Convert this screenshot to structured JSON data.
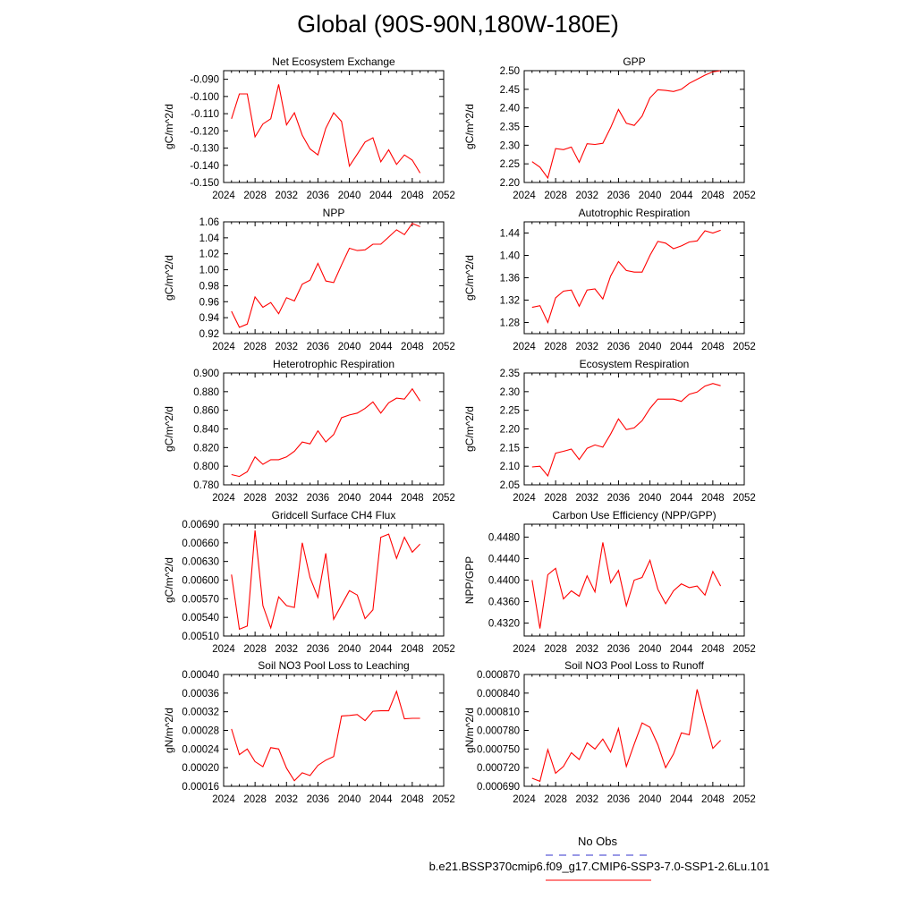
{
  "page": {
    "title": "Global (90S-90N,180W-180E)",
    "legend": {
      "obs_label": "No Obs",
      "model_label": "b.e21.BSSP370cmip6.f09_g17.CMIP6-SSP3-7.0-SSP1-2.6Lu.101",
      "obs_color": "#3333cc",
      "model_color": "#ff0000"
    }
  },
  "chart_data": [
    {
      "type": "line",
      "title": "Net Ecosystem Exchange",
      "ylabel": "gC/m^2/d",
      "xlim": [
        2024,
        2052
      ],
      "ylim": [
        -0.15,
        -0.085
      ],
      "xticks": [
        "2024",
        "2028",
        "2032",
        "2036",
        "2040",
        "2044",
        "2048",
        "2052"
      ],
      "yticks": [
        "-0.090",
        "-0.100",
        "-0.110",
        "-0.120",
        "-0.130",
        "-0.140",
        "-0.150"
      ],
      "series": [
        {
          "color": "#ff0000",
          "x": [
            2025,
            2026,
            2027,
            2028,
            2029,
            2030,
            2031,
            2032,
            2033,
            2034,
            2035,
            2036,
            2037,
            2038,
            2039,
            2040,
            2041,
            2042,
            2043,
            2044,
            2045,
            2046,
            2047,
            2048,
            2049
          ],
          "y": [
            -0.113,
            -0.0985,
            -0.0985,
            -0.1235,
            -0.116,
            -0.113,
            -0.093,
            -0.1165,
            -0.1095,
            -0.1225,
            -0.1305,
            -0.134,
            -0.1185,
            -0.1095,
            -0.1145,
            -0.1405,
            -0.1335,
            -0.1265,
            -0.124,
            -0.138,
            -0.131,
            -0.1395,
            -0.134,
            -0.137,
            -0.1445
          ]
        }
      ]
    },
    {
      "type": "line",
      "title": "GPP",
      "ylabel": "gC/m^2/d",
      "xlim": [
        2024,
        2052
      ],
      "ylim": [
        2.2,
        2.5
      ],
      "xticks": [
        "2024",
        "2028",
        "2032",
        "2036",
        "2040",
        "2044",
        "2048",
        "2052"
      ],
      "yticks": [
        "2.50",
        "2.45",
        "2.40",
        "2.35",
        "2.30",
        "2.25",
        "2.20"
      ],
      "series": [
        {
          "color": "#ff0000",
          "x": [
            2025,
            2026,
            2027,
            2028,
            2029,
            2030,
            2031,
            2032,
            2033,
            2034,
            2035,
            2036,
            2037,
            2038,
            2039,
            2040,
            2041,
            2042,
            2043,
            2044,
            2045,
            2046,
            2047,
            2048,
            2049
          ],
          "y": [
            2.256,
            2.241,
            2.212,
            2.291,
            2.288,
            2.295,
            2.254,
            2.304,
            2.302,
            2.305,
            2.347,
            2.396,
            2.359,
            2.353,
            2.378,
            2.427,
            2.449,
            2.447,
            2.444,
            2.45,
            2.466,
            2.477,
            2.488,
            2.497,
            2.5
          ]
        }
      ]
    },
    {
      "type": "line",
      "title": "NPP",
      "ylabel": "gC/m^2/d",
      "xlim": [
        2024,
        2052
      ],
      "ylim": [
        0.92,
        1.06
      ],
      "xticks": [
        "2024",
        "2028",
        "2032",
        "2036",
        "2040",
        "2044",
        "2048",
        "2052"
      ],
      "yticks": [
        "1.06",
        "1.04",
        "1.02",
        "1.00",
        "0.98",
        "0.96",
        "0.94",
        "0.92"
      ],
      "series": [
        {
          "color": "#ff0000",
          "x": [
            2025,
            2026,
            2027,
            2028,
            2029,
            2030,
            2031,
            2032,
            2033,
            2034,
            2035,
            2036,
            2037,
            2038,
            2039,
            2040,
            2041,
            2042,
            2043,
            2044,
            2045,
            2046,
            2047,
            2048,
            2049
          ],
          "y": [
            0.948,
            0.928,
            0.932,
            0.966,
            0.953,
            0.959,
            0.945,
            0.965,
            0.961,
            0.982,
            0.987,
            1.008,
            0.986,
            0.984,
            1.006,
            1.027,
            1.024,
            1.025,
            1.032,
            1.032,
            1.041,
            1.05,
            1.044,
            1.058,
            1.054
          ]
        }
      ]
    },
    {
      "type": "line",
      "title": "Autotrophic Respiration",
      "ylabel": "gC/m^2/d",
      "xlim": [
        2024,
        2052
      ],
      "ylim": [
        1.26,
        1.46
      ],
      "xticks": [
        "2024",
        "2028",
        "2032",
        "2036",
        "2040",
        "2044",
        "2048",
        "2052"
      ],
      "yticks": [
        "1.44",
        "1.40",
        "1.36",
        "1.32",
        "1.28"
      ],
      "series": [
        {
          "color": "#ff0000",
          "x": [
            2025,
            2026,
            2027,
            2028,
            2029,
            2030,
            2031,
            2032,
            2033,
            2034,
            2035,
            2036,
            2037,
            2038,
            2039,
            2040,
            2041,
            2042,
            2043,
            2044,
            2045,
            2046,
            2047,
            2048,
            2049
          ],
          "y": [
            1.307,
            1.31,
            1.28,
            1.324,
            1.336,
            1.338,
            1.309,
            1.338,
            1.34,
            1.322,
            1.363,
            1.389,
            1.373,
            1.37,
            1.37,
            1.4,
            1.425,
            1.422,
            1.412,
            1.417,
            1.424,
            1.426,
            1.444,
            1.44,
            1.445
          ]
        }
      ]
    },
    {
      "type": "line",
      "title": "Heterotrophic Respiration",
      "ylabel": "gC/m^2/d",
      "xlim": [
        2024,
        2052
      ],
      "ylim": [
        0.78,
        0.9
      ],
      "xticks": [
        "2024",
        "2028",
        "2032",
        "2036",
        "2040",
        "2044",
        "2048",
        "2052"
      ],
      "yticks": [
        "0.900",
        "0.880",
        "0.860",
        "0.840",
        "0.820",
        "0.800",
        "0.780"
      ],
      "series": [
        {
          "color": "#ff0000",
          "x": [
            2025,
            2026,
            2027,
            2028,
            2029,
            2030,
            2031,
            2032,
            2033,
            2034,
            2035,
            2036,
            2037,
            2038,
            2039,
            2040,
            2041,
            2042,
            2043,
            2044,
            2045,
            2046,
            2047,
            2048,
            2049
          ],
          "y": [
            0.791,
            0.789,
            0.794,
            0.81,
            0.802,
            0.807,
            0.807,
            0.81,
            0.816,
            0.826,
            0.824,
            0.838,
            0.826,
            0.834,
            0.852,
            0.855,
            0.857,
            0.862,
            0.869,
            0.857,
            0.868,
            0.873,
            0.872,
            0.883,
            0.87
          ]
        }
      ]
    },
    {
      "type": "line",
      "title": "Ecosystem Respiration",
      "ylabel": "gC/m^2/d",
      "xlim": [
        2024,
        2052
      ],
      "ylim": [
        2.05,
        2.35
      ],
      "xticks": [
        "2024",
        "2028",
        "2032",
        "2036",
        "2040",
        "2044",
        "2048",
        "2052"
      ],
      "yticks": [
        "2.35",
        "2.30",
        "2.25",
        "2.20",
        "2.15",
        "2.10",
        "2.05"
      ],
      "series": [
        {
          "color": "#ff0000",
          "x": [
            2025,
            2026,
            2027,
            2028,
            2029,
            2030,
            2031,
            2032,
            2033,
            2034,
            2035,
            2036,
            2037,
            2038,
            2039,
            2040,
            2041,
            2042,
            2043,
            2044,
            2045,
            2046,
            2047,
            2048,
            2049
          ],
          "y": [
            2.098,
            2.1,
            2.074,
            2.135,
            2.14,
            2.146,
            2.118,
            2.148,
            2.157,
            2.151,
            2.186,
            2.227,
            2.198,
            2.203,
            2.222,
            2.255,
            2.28,
            2.28,
            2.28,
            2.274,
            2.293,
            2.299,
            2.315,
            2.322,
            2.316
          ]
        }
      ]
    },
    {
      "type": "line",
      "title": "Gridcell Surface CH4 Flux",
      "ylabel": "gC/m^2/d",
      "xlim": [
        2024,
        2052
      ],
      "ylim": [
        0.0051,
        0.0069
      ],
      "xticks": [
        "2024",
        "2028",
        "2032",
        "2036",
        "2040",
        "2044",
        "2048",
        "2052"
      ],
      "yticks": [
        "0.00690",
        "0.00660",
        "0.00630",
        "0.00600",
        "0.00570",
        "0.00540",
        "0.00510"
      ],
      "series": [
        {
          "color": "#ff0000",
          "x": [
            2025,
            2026,
            2027,
            2028,
            2029,
            2030,
            2031,
            2032,
            2033,
            2034,
            2035,
            2036,
            2037,
            2038,
            2039,
            2040,
            2041,
            2042,
            2043,
            2044,
            2045,
            2046,
            2047,
            2048,
            2049
          ],
          "y": [
            0.00609,
            0.00521,
            0.00526,
            0.0068,
            0.00559,
            0.00523,
            0.00573,
            0.00559,
            0.00556,
            0.0066,
            0.00604,
            0.00572,
            0.00643,
            0.00537,
            0.0056,
            0.00583,
            0.00576,
            0.00538,
            0.00552,
            0.00669,
            0.00674,
            0.00635,
            0.00669,
            0.00645,
            0.00658
          ]
        }
      ]
    },
    {
      "type": "line",
      "title": "Carbon Use Efficiency (NPP/GPP)",
      "ylabel": "NPP/GPP",
      "xlim": [
        2024,
        2052
      ],
      "ylim": [
        0.4296,
        0.4504
      ],
      "xticks": [
        "2024",
        "2028",
        "2032",
        "2036",
        "2040",
        "2044",
        "2048",
        "2052"
      ],
      "yticks": [
        "0.4480",
        "0.4440",
        "0.4400",
        "0.4360",
        "0.4320"
      ],
      "series": [
        {
          "color": "#ff0000",
          "x": [
            2025,
            2026,
            2027,
            2028,
            2029,
            2030,
            2031,
            2032,
            2033,
            2034,
            2035,
            2036,
            2037,
            2038,
            2039,
            2040,
            2041,
            2042,
            2043,
            2044,
            2045,
            2046,
            2047,
            2048,
            2049
          ],
          "y": [
            0.44,
            0.431,
            0.441,
            0.4422,
            0.4365,
            0.438,
            0.437,
            0.4408,
            0.4378,
            0.447,
            0.4395,
            0.4418,
            0.4352,
            0.44,
            0.4405,
            0.4437,
            0.4383,
            0.4356,
            0.438,
            0.4393,
            0.4386,
            0.4389,
            0.4372,
            0.4416,
            0.4389
          ]
        }
      ]
    },
    {
      "type": "line",
      "title": "Soil NO3 Pool Loss to Leaching",
      "ylabel": "gN/m^2/d",
      "xlim": [
        2024,
        2052
      ],
      "ylim": [
        0.00016,
        0.0004
      ],
      "xticks": [
        "2024",
        "2028",
        "2032",
        "2036",
        "2040",
        "2044",
        "2048",
        "2052"
      ],
      "yticks": [
        "0.00040",
        "0.00036",
        "0.00032",
        "0.00028",
        "0.00024",
        "0.00020",
        "0.00016"
      ],
      "series": [
        {
          "color": "#ff0000",
          "x": [
            2025,
            2026,
            2027,
            2028,
            2029,
            2030,
            2031,
            2032,
            2033,
            2034,
            2035,
            2036,
            2037,
            2038,
            2039,
            2040,
            2041,
            2042,
            2043,
            2044,
            2045,
            2046,
            2047,
            2048,
            2049
          ],
          "y": [
            0.000283,
            0.000228,
            0.00024,
            0.000213,
            0.000202,
            0.000243,
            0.00024,
            0.000199,
            0.000172,
            0.000189,
            0.000183,
            0.000205,
            0.000216,
            0.000224,
            0.000311,
            0.000312,
            0.000314,
            0.000301,
            0.000321,
            0.000322,
            0.000322,
            0.000364,
            0.000305,
            0.000306,
            0.000306
          ]
        }
      ]
    },
    {
      "type": "line",
      "title": "Soil NO3 Pool Loss to Runoff",
      "ylabel": "gN/m^2/d",
      "xlim": [
        2024,
        2052
      ],
      "ylim": [
        0.00069,
        0.00087
      ],
      "xticks": [
        "2024",
        "2028",
        "2032",
        "2036",
        "2040",
        "2044",
        "2048",
        "2052"
      ],
      "yticks": [
        "0.000870",
        "0.000840",
        "0.000810",
        "0.000780",
        "0.000750",
        "0.000720",
        "0.000690"
      ],
      "series": [
        {
          "color": "#ff0000",
          "x": [
            2025,
            2026,
            2027,
            2028,
            2029,
            2030,
            2031,
            2032,
            2033,
            2034,
            2035,
            2036,
            2037,
            2038,
            2039,
            2040,
            2041,
            2042,
            2043,
            2044,
            2045,
            2046,
            2047,
            2048,
            2049
          ],
          "y": [
            0.000703,
            0.000698,
            0.000749,
            0.000711,
            0.000722,
            0.000744,
            0.000733,
            0.00076,
            0.00075,
            0.000766,
            0.000745,
            0.000783,
            0.000722,
            0.000758,
            0.000792,
            0.000785,
            0.000757,
            0.00072,
            0.000742,
            0.000776,
            0.000773,
            0.000846,
            0.000797,
            0.000751,
            0.000764
          ]
        }
      ]
    }
  ]
}
